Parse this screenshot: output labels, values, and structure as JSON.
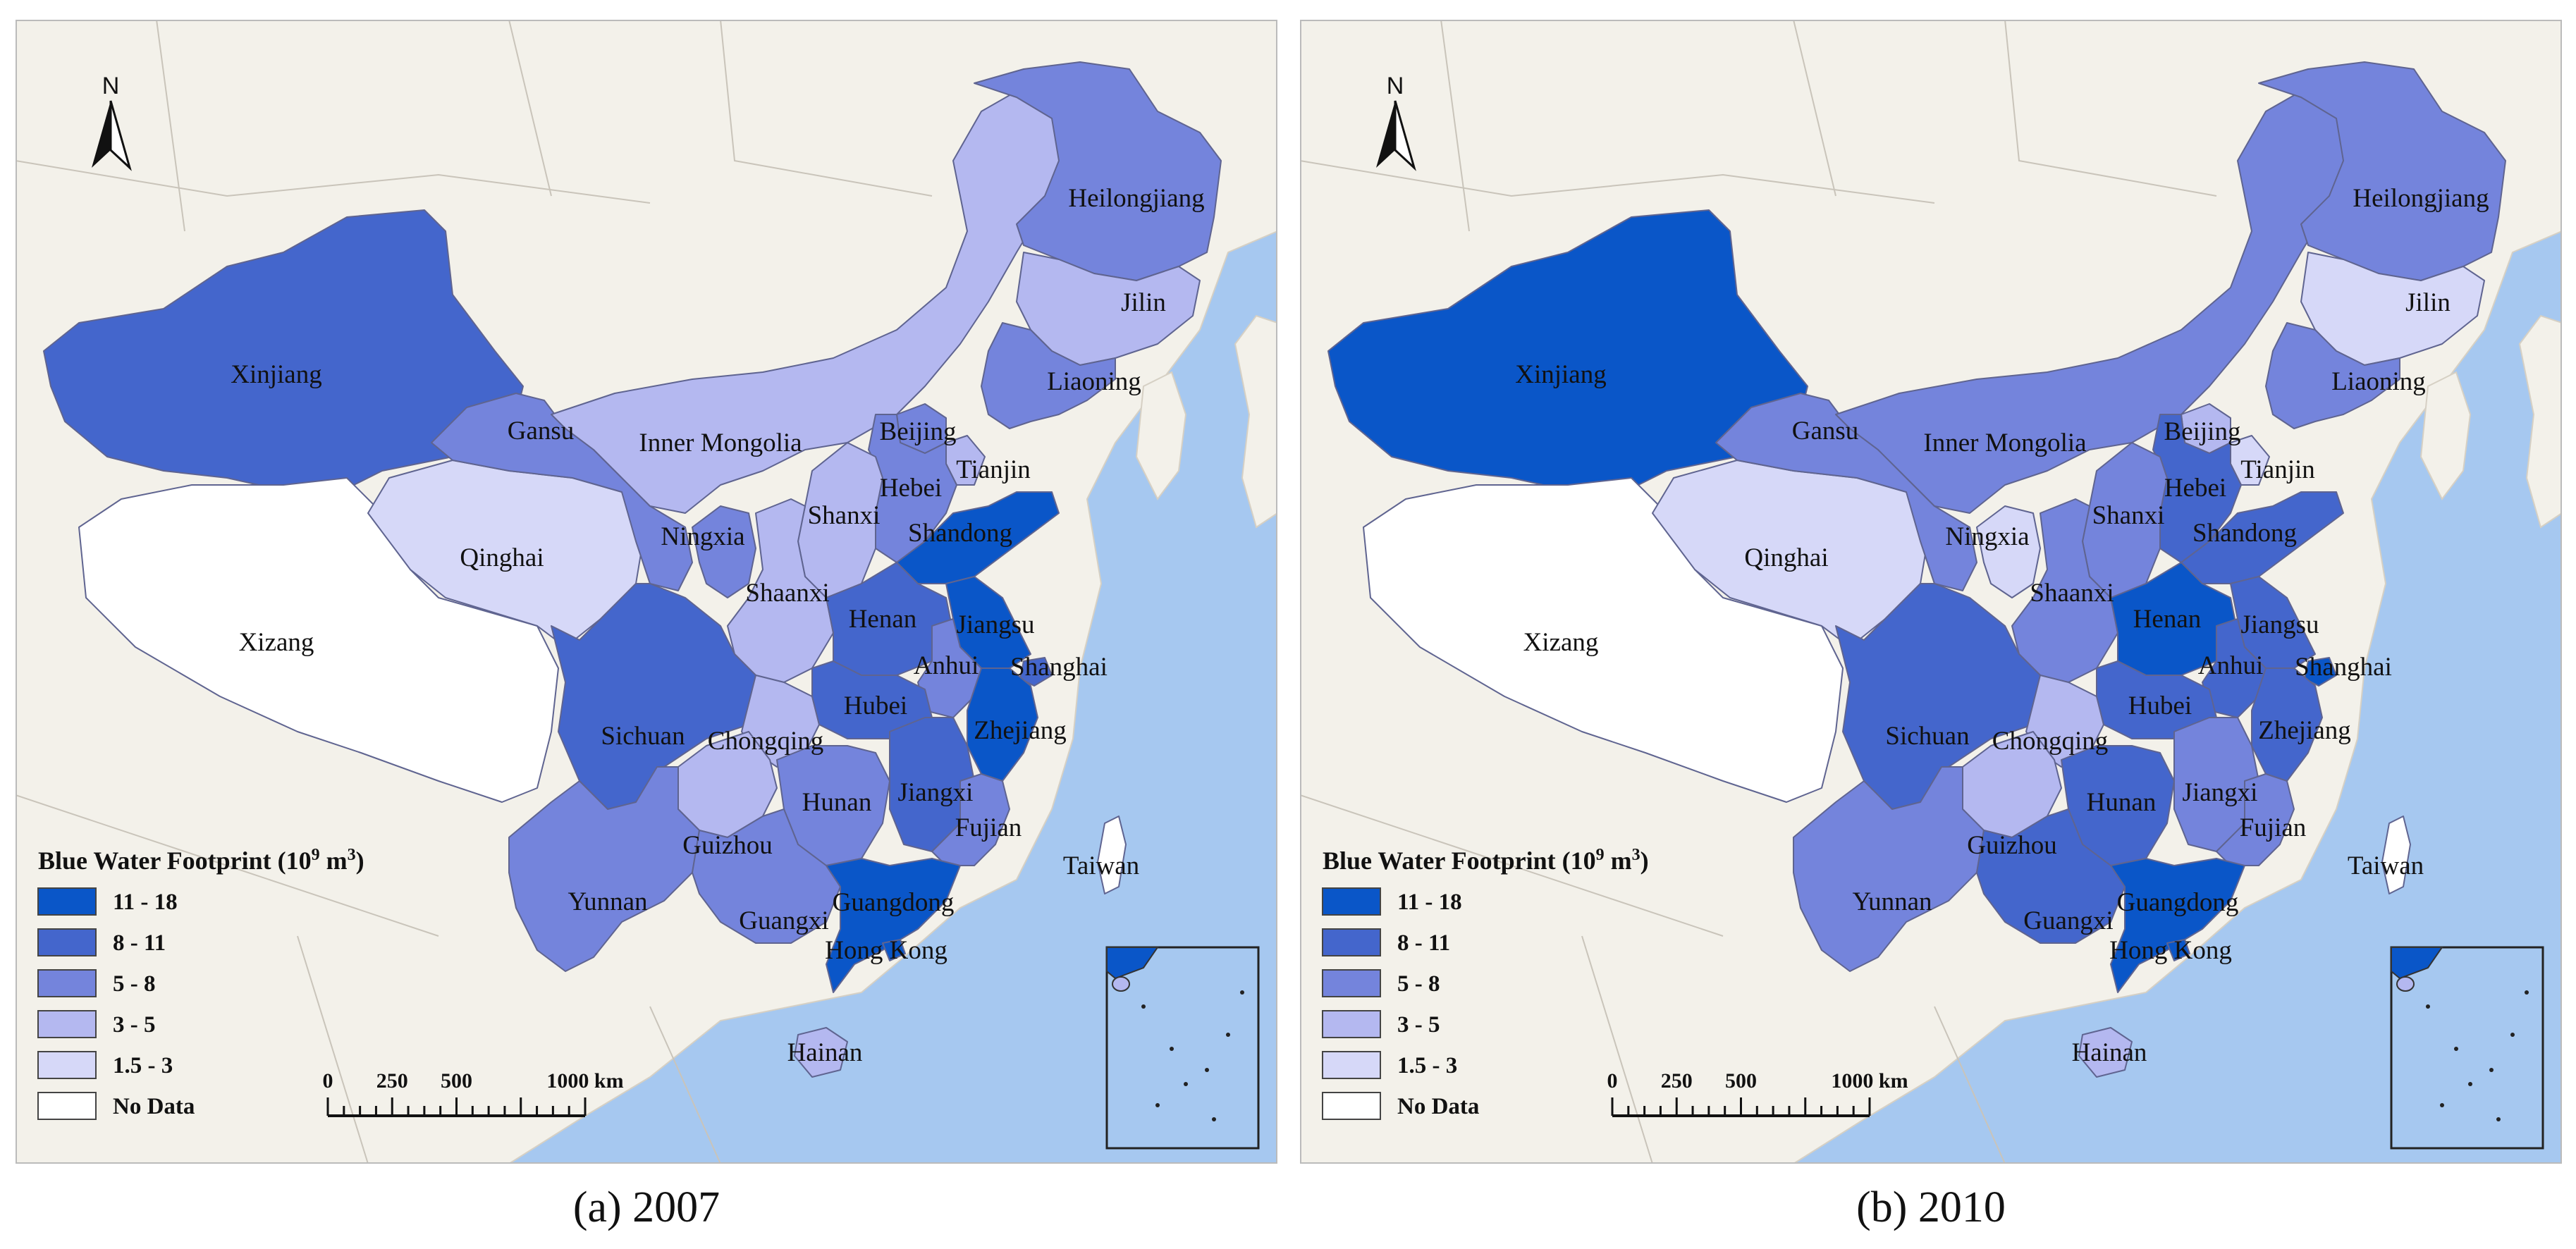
{
  "colors": {
    "class_11_18": "#0a56c8",
    "class_8_11": "#4466cc",
    "class_5_8": "#7484dc",
    "class_3_5": "#b4b8f0",
    "class_1_5_3": "#d6d8f8",
    "no_data": "#ffffff",
    "sea": "#a6c8f0",
    "land": "#f3f1ea"
  },
  "legend": {
    "title": "Blue Water Footprint (10",
    "title_sup": "9",
    "title_unit": " m",
    "title_sup2": "3",
    "title_close": ")",
    "items": [
      {
        "label": "11 - 18",
        "class": "class_11_18"
      },
      {
        "label": "8 - 11",
        "class": "class_8_11"
      },
      {
        "label": "5 - 8",
        "class": "class_5_8"
      },
      {
        "label": "3 - 5",
        "class": "class_3_5"
      },
      {
        "label": "1.5 - 3",
        "class": "class_1_5_3"
      },
      {
        "label": "No Data",
        "class": "no_data"
      }
    ]
  },
  "scale_bar": {
    "ticks": [
      "0",
      "250",
      "500",
      "1000 km"
    ]
  },
  "north_arrow": {
    "label": "N",
    "icon": "north-arrow-icon"
  },
  "panels": [
    {
      "caption": "(a) 2007",
      "classes": {
        "Xinjiang": "class_8_11",
        "Xizang": "no_data",
        "Qinghai": "class_1_5_3",
        "Gansu": "class_5_8",
        "Inner Mongolia": "class_3_5",
        "Heilongjiang": "class_5_8",
        "Jilin": "class_3_5",
        "Liaoning": "class_5_8",
        "Beijing": "class_5_8",
        "Tianjin": "class_3_5",
        "Hebei": "class_5_8",
        "Shanxi": "class_3_5",
        "Shandong": "class_11_18",
        "Ningxia": "class_5_8",
        "Shaanxi": "class_3_5",
        "Henan": "class_8_11",
        "Jiangsu": "class_11_18",
        "Shanghai": "class_8_11",
        "Anhui": "class_5_8",
        "Sichuan": "class_8_11",
        "Chongqing": "class_3_5",
        "Hubei": "class_8_11",
        "Zhejiang": "class_11_18",
        "Guizhou": "class_3_5",
        "Hunan": "class_5_8",
        "Jiangxi": "class_8_11",
        "Fujian": "class_5_8",
        "Yunnan": "class_5_8",
        "Guangxi": "class_5_8",
        "Guangdong": "class_11_18",
        "Hong Kong": "class_11_18",
        "Hainan": "class_3_5",
        "Taiwan": "no_data"
      }
    },
    {
      "caption": "(b) 2010",
      "classes": {
        "Xinjiang": "class_11_18",
        "Xizang": "no_data",
        "Qinghai": "class_1_5_3",
        "Gansu": "class_5_8",
        "Inner Mongolia": "class_5_8",
        "Heilongjiang": "class_5_8",
        "Jilin": "class_1_5_3",
        "Liaoning": "class_5_8",
        "Beijing": "class_3_5",
        "Tianjin": "class_1_5_3",
        "Hebei": "class_8_11",
        "Shanxi": "class_5_8",
        "Shandong": "class_8_11",
        "Ningxia": "class_1_5_3",
        "Shaanxi": "class_5_8",
        "Henan": "class_11_18",
        "Jiangsu": "class_8_11",
        "Shanghai": "class_11_18",
        "Anhui": "class_8_11",
        "Sichuan": "class_8_11",
        "Chongqing": "class_3_5",
        "Hubei": "class_8_11",
        "Zhejiang": "class_8_11",
        "Guizhou": "class_3_5",
        "Hunan": "class_8_11",
        "Jiangxi": "class_5_8",
        "Fujian": "class_5_8",
        "Yunnan": "class_5_8",
        "Guangxi": "class_8_11",
        "Guangdong": "class_11_18",
        "Hong Kong": "class_11_18",
        "Hainan": "class_3_5",
        "Taiwan": "no_data"
      }
    }
  ],
  "provinces": [
    {
      "name": "Xinjiang",
      "label": "Xinjiang"
    },
    {
      "name": "Xizang",
      "label": "Xizang"
    },
    {
      "name": "Qinghai",
      "label": "Qinghai"
    },
    {
      "name": "Gansu",
      "label": "Gansu"
    },
    {
      "name": "Inner Mongolia",
      "label": "Inner Mongolia"
    },
    {
      "name": "Heilongjiang",
      "label": "Heilongjiang"
    },
    {
      "name": "Jilin",
      "label": "Jilin"
    },
    {
      "name": "Liaoning",
      "label": "Liaoning"
    },
    {
      "name": "Beijing",
      "label": "Beijing"
    },
    {
      "name": "Tianjin",
      "label": "Tianjin"
    },
    {
      "name": "Hebei",
      "label": "Hebei"
    },
    {
      "name": "Shanxi",
      "label": "Shanxi"
    },
    {
      "name": "Shandong",
      "label": "Shandong"
    },
    {
      "name": "Ningxia",
      "label": "Ningxia"
    },
    {
      "name": "Shaanxi",
      "label": "Shaanxi"
    },
    {
      "name": "Henan",
      "label": "Henan"
    },
    {
      "name": "Jiangsu",
      "label": "Jiangsu"
    },
    {
      "name": "Shanghai",
      "label": "Shanghai"
    },
    {
      "name": "Anhui",
      "label": "Anhui"
    },
    {
      "name": "Sichuan",
      "label": "Sichuan"
    },
    {
      "name": "Chongqing",
      "label": "Chongqing"
    },
    {
      "name": "Hubei",
      "label": "Hubei"
    },
    {
      "name": "Zhejiang",
      "label": "Zhejiang"
    },
    {
      "name": "Guizhou",
      "label": "Guizhou"
    },
    {
      "name": "Hunan",
      "label": "Hunan"
    },
    {
      "name": "Jiangxi",
      "label": "Jiangxi"
    },
    {
      "name": "Fujian",
      "label": "Fujian"
    },
    {
      "name": "Yunnan",
      "label": "Yunnan"
    },
    {
      "name": "Guangxi",
      "label": "Guangxi"
    },
    {
      "name": "Guangdong",
      "label": "Guangdong"
    },
    {
      "name": "Hong Kong",
      "label": "Hong Kong"
    },
    {
      "name": "Hainan",
      "label": "Hainan"
    },
    {
      "name": "Taiwan",
      "label": "Taiwan"
    }
  ]
}
